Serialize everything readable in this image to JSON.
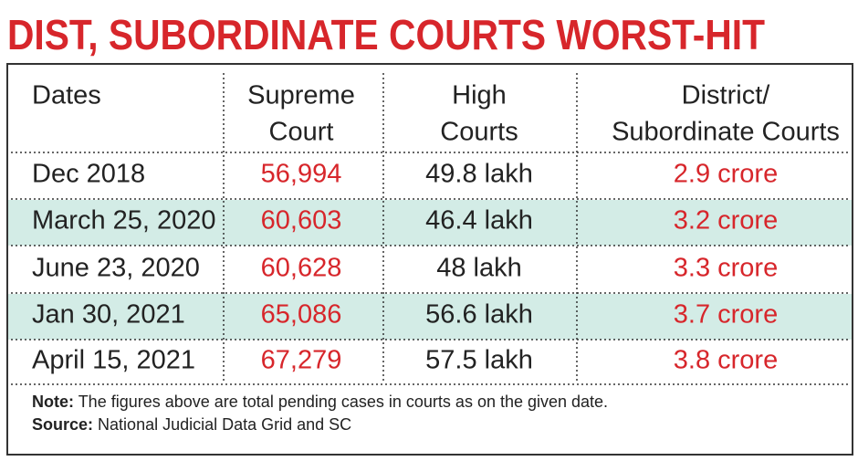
{
  "header": {
    "title": "DIST, SUBORDINATE COURTS WORST-HIT"
  },
  "table": {
    "columns": [
      [
        "Dates"
      ],
      [
        "Supreme",
        "Court"
      ],
      [
        "High",
        "Courts"
      ],
      [
        "District/",
        "Subordinate Courts"
      ]
    ],
    "rows": [
      [
        "Dec 2018",
        "56,994",
        "49.8 lakh",
        "2.9 crore"
      ],
      [
        "March 25, 2020",
        "60,603",
        "46.4 lakh",
        "3.2 crore"
      ],
      [
        "June 23, 2020",
        "60,628",
        "48 lakh",
        "3.3 crore"
      ],
      [
        "Jan 30, 2021",
        "65,086",
        "56.6 lakh",
        "3.7 crore"
      ],
      [
        "April 15, 2021",
        "67,279",
        "57.5 lakh",
        "3.8 crore"
      ]
    ]
  },
  "note": {
    "label": "Note:",
    "text": "The figures above are total pending cases in courts as on the given date."
  },
  "source": {
    "label": "Source:",
    "text": "National Judicial Data Grid and SC"
  }
}
